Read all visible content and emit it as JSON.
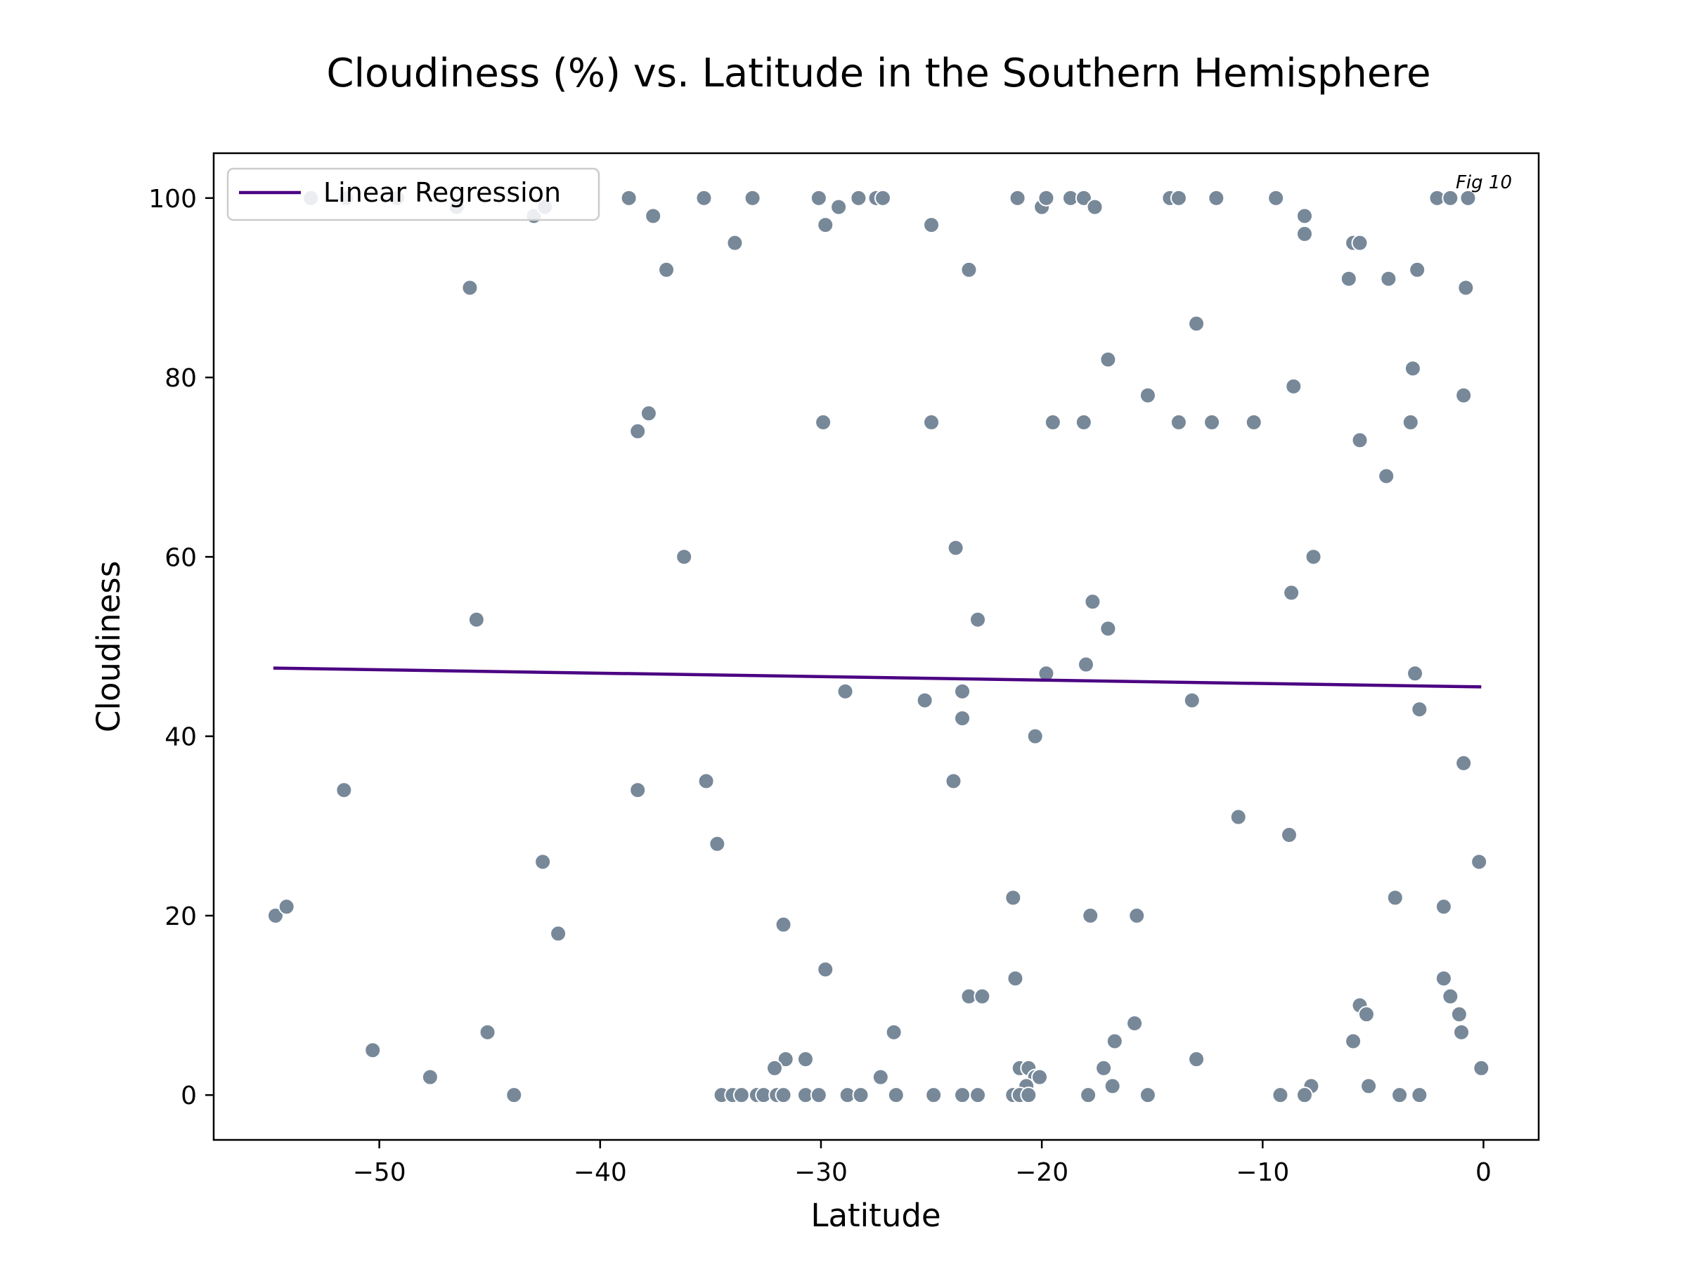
{
  "chart_data": {
    "type": "scatter",
    "title": "Cloudiness (%) vs. Latitude in the Southern Hemisphere",
    "xlabel": "Latitude",
    "ylabel": "Cloudiness",
    "xlim": [
      -57.5,
      2.5
    ],
    "ylim": [
      -5,
      105
    ],
    "xticks": [
      -50,
      -40,
      -30,
      -20,
      -10,
      0
    ],
    "yticks": [
      0,
      20,
      40,
      60,
      80,
      100
    ],
    "xtick_labels": [
      "−50",
      "−40",
      "−30",
      "−20",
      "−10",
      "0"
    ],
    "ytick_labels": [
      "0",
      "20",
      "40",
      "60",
      "80",
      "100"
    ],
    "grid": false,
    "legend": {
      "position": "top-left",
      "entries": [
        "Linear Regression"
      ]
    },
    "annotation": "Fig 10",
    "colors": {
      "points": "#778899",
      "line": "#4b0082"
    },
    "regression": {
      "name": "Linear Regression",
      "x": [
        -54.8,
        -0.1
      ],
      "y": [
        47.6,
        45.5
      ]
    },
    "points": [
      [
        -53.1,
        100
      ],
      [
        -51.5,
        100
      ],
      [
        -46.5,
        99
      ],
      [
        -49.2,
        100
      ],
      [
        -43.0,
        98
      ],
      [
        -42.5,
        99
      ],
      [
        -38.7,
        100
      ],
      [
        -37.6,
        98
      ],
      [
        -37.0,
        92
      ],
      [
        -35.3,
        100
      ],
      [
        -33.9,
        95
      ],
      [
        -33.1,
        100
      ],
      [
        -30.1,
        100
      ],
      [
        -29.8,
        97
      ],
      [
        -29.2,
        99
      ],
      [
        -28.3,
        100
      ],
      [
        -27.5,
        100
      ],
      [
        -27.2,
        100
      ],
      [
        -25.0,
        97
      ],
      [
        -23.3,
        92
      ],
      [
        -21.1,
        100
      ],
      [
        -20.0,
        99
      ],
      [
        -19.8,
        100
      ],
      [
        -18.7,
        100
      ],
      [
        -18.1,
        100
      ],
      [
        -17.6,
        99
      ],
      [
        -14.2,
        100
      ],
      [
        -13.8,
        100
      ],
      [
        -12.1,
        100
      ],
      [
        -9.4,
        100
      ],
      [
        -8.1,
        98
      ],
      [
        -8.1,
        96
      ],
      [
        -5.9,
        95
      ],
      [
        -5.6,
        95
      ],
      [
        -6.1,
        91
      ],
      [
        -4.3,
        91
      ],
      [
        -3.0,
        92
      ],
      [
        -2.1,
        100
      ],
      [
        -1.5,
        100
      ],
      [
        -0.7,
        100
      ],
      [
        -0.8,
        90
      ],
      [
        -45.9,
        90
      ],
      [
        -13.0,
        86
      ],
      [
        -17.0,
        82
      ],
      [
        -15.2,
        78
      ],
      [
        -3.2,
        81
      ],
      [
        -0.9,
        78
      ],
      [
        -8.6,
        79
      ],
      [
        -37.8,
        76
      ],
      [
        -38.3,
        74
      ],
      [
        -29.9,
        75
      ],
      [
        -25.0,
        75
      ],
      [
        -19.5,
        75
      ],
      [
        -18.1,
        75
      ],
      [
        -13.8,
        75
      ],
      [
        -12.3,
        75
      ],
      [
        -10.4,
        75
      ],
      [
        -3.3,
        75
      ],
      [
        -5.6,
        73
      ],
      [
        -4.4,
        69
      ],
      [
        -36.2,
        60
      ],
      [
        -23.9,
        61
      ],
      [
        -7.7,
        60
      ],
      [
        -45.6,
        53
      ],
      [
        -22.9,
        53
      ],
      [
        -17.7,
        55
      ],
      [
        -17.0,
        52
      ],
      [
        -8.7,
        56
      ],
      [
        -19.8,
        47
      ],
      [
        -18.0,
        48
      ],
      [
        -3.1,
        47
      ],
      [
        -28.9,
        45
      ],
      [
        -25.3,
        44
      ],
      [
        -23.6,
        45
      ],
      [
        -13.2,
        44
      ],
      [
        -23.6,
        42
      ],
      [
        -20.3,
        40
      ],
      [
        -2.9,
        43
      ],
      [
        -51.6,
        34
      ],
      [
        -38.3,
        34
      ],
      [
        -35.2,
        35
      ],
      [
        -24.0,
        35
      ],
      [
        -34.7,
        28
      ],
      [
        -11.1,
        31
      ],
      [
        -8.8,
        29
      ],
      [
        -0.9,
        37
      ],
      [
        -0.2,
        26
      ],
      [
        -42.6,
        26
      ],
      [
        -54.7,
        20
      ],
      [
        -54.2,
        21
      ],
      [
        -41.9,
        18
      ],
      [
        -31.7,
        19
      ],
      [
        -21.3,
        22
      ],
      [
        -17.8,
        20
      ],
      [
        -15.7,
        20
      ],
      [
        -4.0,
        22
      ],
      [
        -1.8,
        21
      ],
      [
        -29.8,
        14
      ],
      [
        -21.2,
        13
      ],
      [
        -23.3,
        11
      ],
      [
        -22.7,
        11
      ],
      [
        -1.8,
        13
      ],
      [
        -1.5,
        11
      ],
      [
        -5.6,
        10
      ],
      [
        -5.3,
        9
      ],
      [
        -1.1,
        9
      ],
      [
        -1.0,
        7
      ],
      [
        -45.1,
        7
      ],
      [
        -26.7,
        7
      ],
      [
        -50.3,
        5
      ],
      [
        -47.7,
        2
      ],
      [
        -15.8,
        8
      ],
      [
        -16.7,
        6
      ],
      [
        -5.9,
        6
      ],
      [
        -31.6,
        4
      ],
      [
        -30.7,
        4
      ],
      [
        -13.0,
        4
      ],
      [
        -32.1,
        3
      ],
      [
        -21.0,
        3
      ],
      [
        -20.6,
        3
      ],
      [
        -20.3,
        2
      ],
      [
        -20.1,
        2
      ],
      [
        -20.7,
        1
      ],
      [
        -17.2,
        3
      ],
      [
        -16.8,
        1
      ],
      [
        -27.3,
        2
      ],
      [
        -7.8,
        1
      ],
      [
        -5.2,
        1
      ],
      [
        -0.1,
        3
      ],
      [
        -43.9,
        0
      ],
      [
        -34.5,
        0
      ],
      [
        -34.0,
        0
      ],
      [
        -33.6,
        0
      ],
      [
        -32.9,
        0
      ],
      [
        -32.6,
        0
      ],
      [
        -32.0,
        0
      ],
      [
        -31.7,
        0
      ],
      [
        -30.7,
        0
      ],
      [
        -30.1,
        0
      ],
      [
        -28.8,
        0
      ],
      [
        -28.2,
        0
      ],
      [
        -26.6,
        0
      ],
      [
        -24.9,
        0
      ],
      [
        -23.6,
        0
      ],
      [
        -22.9,
        0
      ],
      [
        -21.3,
        0
      ],
      [
        -21.0,
        0
      ],
      [
        -20.6,
        0
      ],
      [
        -17.9,
        0
      ],
      [
        -15.2,
        0
      ],
      [
        -9.2,
        0
      ],
      [
        -8.1,
        0
      ],
      [
        -3.8,
        0
      ],
      [
        -2.9,
        0
      ]
    ]
  }
}
